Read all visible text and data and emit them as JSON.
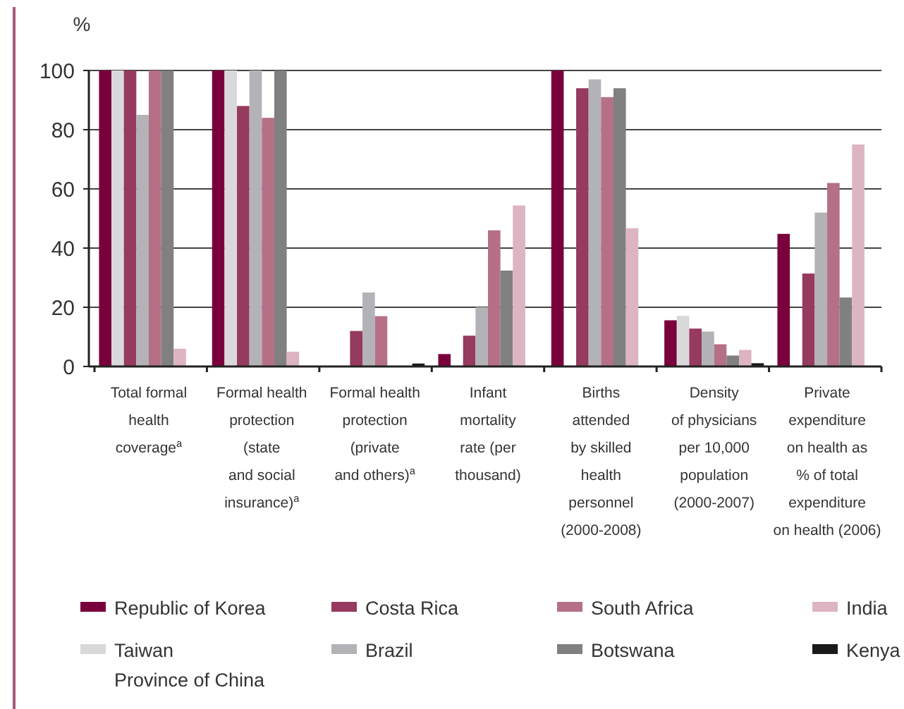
{
  "chart_data": {
    "type": "bar",
    "ylabel": "%",
    "categories": [
      "Total formal\nhealth\ncoverage$^{a}$",
      "Formal health\nprotection\n(state\nand social\ninsurance)$^{a}$",
      "Formal health\nprotection\n(private\nand others)$^{a}$",
      "Infant\nmortality\nrate (per\nthousand)",
      "Births\nattended\nby skilled\nhealth\npersonnel\n(2000-2008)",
      "Density\nof physicians\nper 10,000\npopulation\n(2000-2007)",
      "Private\nexpenditure\non health as\n% of total\nexpenditure\non health (2006)"
    ],
    "series": [
      {
        "name": "Republic of Korea",
        "color": "#7a003c",
        "values": [
          100,
          100,
          null,
          4.2,
          100,
          15.6,
          44.8
        ]
      },
      {
        "name": "Taiwan\nProvince of China",
        "color": "#d9d9db",
        "values": [
          100,
          100,
          null,
          null,
          null,
          17.1,
          null
        ]
      },
      {
        "name": "Costa Rica",
        "color": "#963a5f",
        "values": [
          100,
          88,
          12,
          10.4,
          94,
          12.8,
          31.4
        ]
      },
      {
        "name": "Brazil",
        "color": "#b3b3b7",
        "values": [
          85,
          100,
          25,
          20,
          97,
          11.8,
          52
        ]
      },
      {
        "name": "South Africa",
        "color": "#b57088",
        "values": [
          100,
          84,
          17,
          46,
          91,
          7.5,
          62
        ]
      },
      {
        "name": "Botswana",
        "color": "#808080",
        "values": [
          100,
          100,
          null,
          32.4,
          94,
          3.7,
          23.3
        ]
      },
      {
        "name": "India",
        "color": "#ddb5c2",
        "values": [
          6,
          5,
          null,
          54.4,
          46.7,
          5.6,
          75
        ]
      },
      {
        "name": "Kenya",
        "color": "#1a1a1a",
        "values": [
          null,
          null,
          1,
          null,
          null,
          1.1,
          null
        ]
      }
    ],
    "ylim": [
      0,
      100
    ],
    "yticks": [
      0,
      20,
      40,
      60,
      80,
      100
    ],
    "grid": "y",
    "legend": "bottom"
  }
}
